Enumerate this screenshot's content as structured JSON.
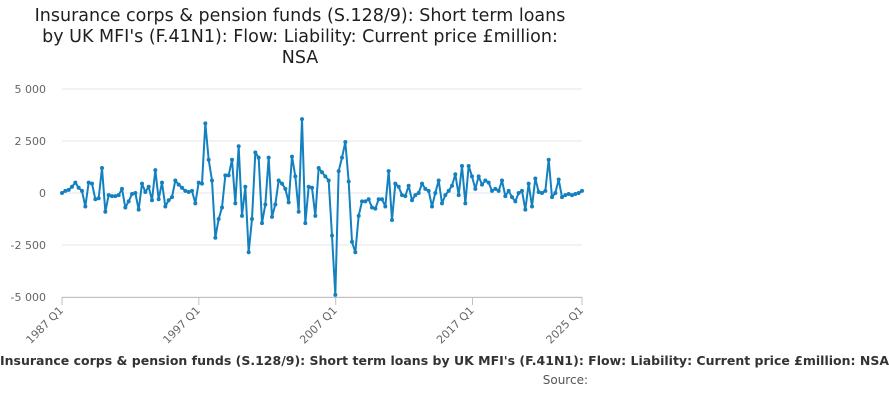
{
  "chart_data": {
    "type": "line",
    "title": "Insurance corps & pension funds (S.128/9): Short term loans by UK MFI's (F.41N1): Flow: Liability: Current price £million: NSA",
    "title_lines": [
      "Insurance corps & pension funds (S.128/9): Short term loans",
      "by UK MFI's (F.41N1): Flow: Liability: Current price £million:",
      "NSA"
    ],
    "xlabel": "",
    "ylabel": "",
    "ylim": [
      -5000,
      5000
    ],
    "y_ticks": [
      5000,
      2500,
      0,
      -2500,
      -5000
    ],
    "y_tick_labels": [
      "5 000",
      "2 500",
      "0",
      "-2 500",
      "-5 000"
    ],
    "x_tick_labels": [
      "1987 Q1",
      "1997 Q1",
      "2007 Q1",
      "2017 Q1",
      "2025 Q1"
    ],
    "x_start": "1987 Q1",
    "x_end": "2025 Q1",
    "grid": true,
    "legend": "none",
    "line_color": "#1380c0",
    "series": [
      {
        "values": [
          0,
          100,
          150,
          300,
          500,
          250,
          100,
          -650,
          500,
          450,
          -300,
          -250,
          1200,
          -900,
          -100,
          -150,
          -150,
          -100,
          200,
          -700,
          -400,
          -50,
          0,
          -800,
          450,
          50,
          300,
          -350,
          1100,
          -300,
          500,
          -650,
          -350,
          -200,
          600,
          400,
          250,
          100,
          50,
          100,
          -500,
          500,
          450,
          3350,
          1600,
          600,
          -2150,
          -1250,
          -700,
          850,
          850,
          1600,
          -500,
          2250,
          -1100,
          300,
          -2850,
          -1250,
          1950,
          1700,
          -1450,
          -550,
          1700,
          -1150,
          -550,
          600,
          450,
          200,
          -450,
          1750,
          800,
          -900,
          3550,
          -1450,
          300,
          250,
          -1100,
          1200,
          1000,
          800,
          600,
          -2050,
          -4900,
          1050,
          1700,
          2450,
          550,
          -2350,
          -2850,
          -1100,
          -400,
          -400,
          -300,
          -700,
          -750,
          -300,
          -300,
          -650,
          1050,
          -1300,
          450,
          300,
          -100,
          -150,
          350,
          -350,
          -100,
          0,
          450,
          200,
          100,
          -650,
          0,
          600,
          -500,
          -100,
          100,
          350,
          900,
          -100,
          1300,
          -500,
          1300,
          800,
          200,
          800,
          400,
          600,
          500,
          100,
          200,
          100,
          600,
          -150,
          100,
          -200,
          -400,
          0,
          100,
          -800,
          450,
          -650,
          700,
          50,
          0,
          100,
          1600,
          -200,
          0,
          650,
          -200,
          -100,
          -50,
          -100,
          -50,
          0,
          100
        ]
      }
    ]
  },
  "footer": {
    "series_title": "Insurance corps & pension funds (S.128/9): Short term loans by UK MFI's (F.41N1): Flow: Liability: Current price £million: NSA",
    "source_label": "Source:"
  }
}
